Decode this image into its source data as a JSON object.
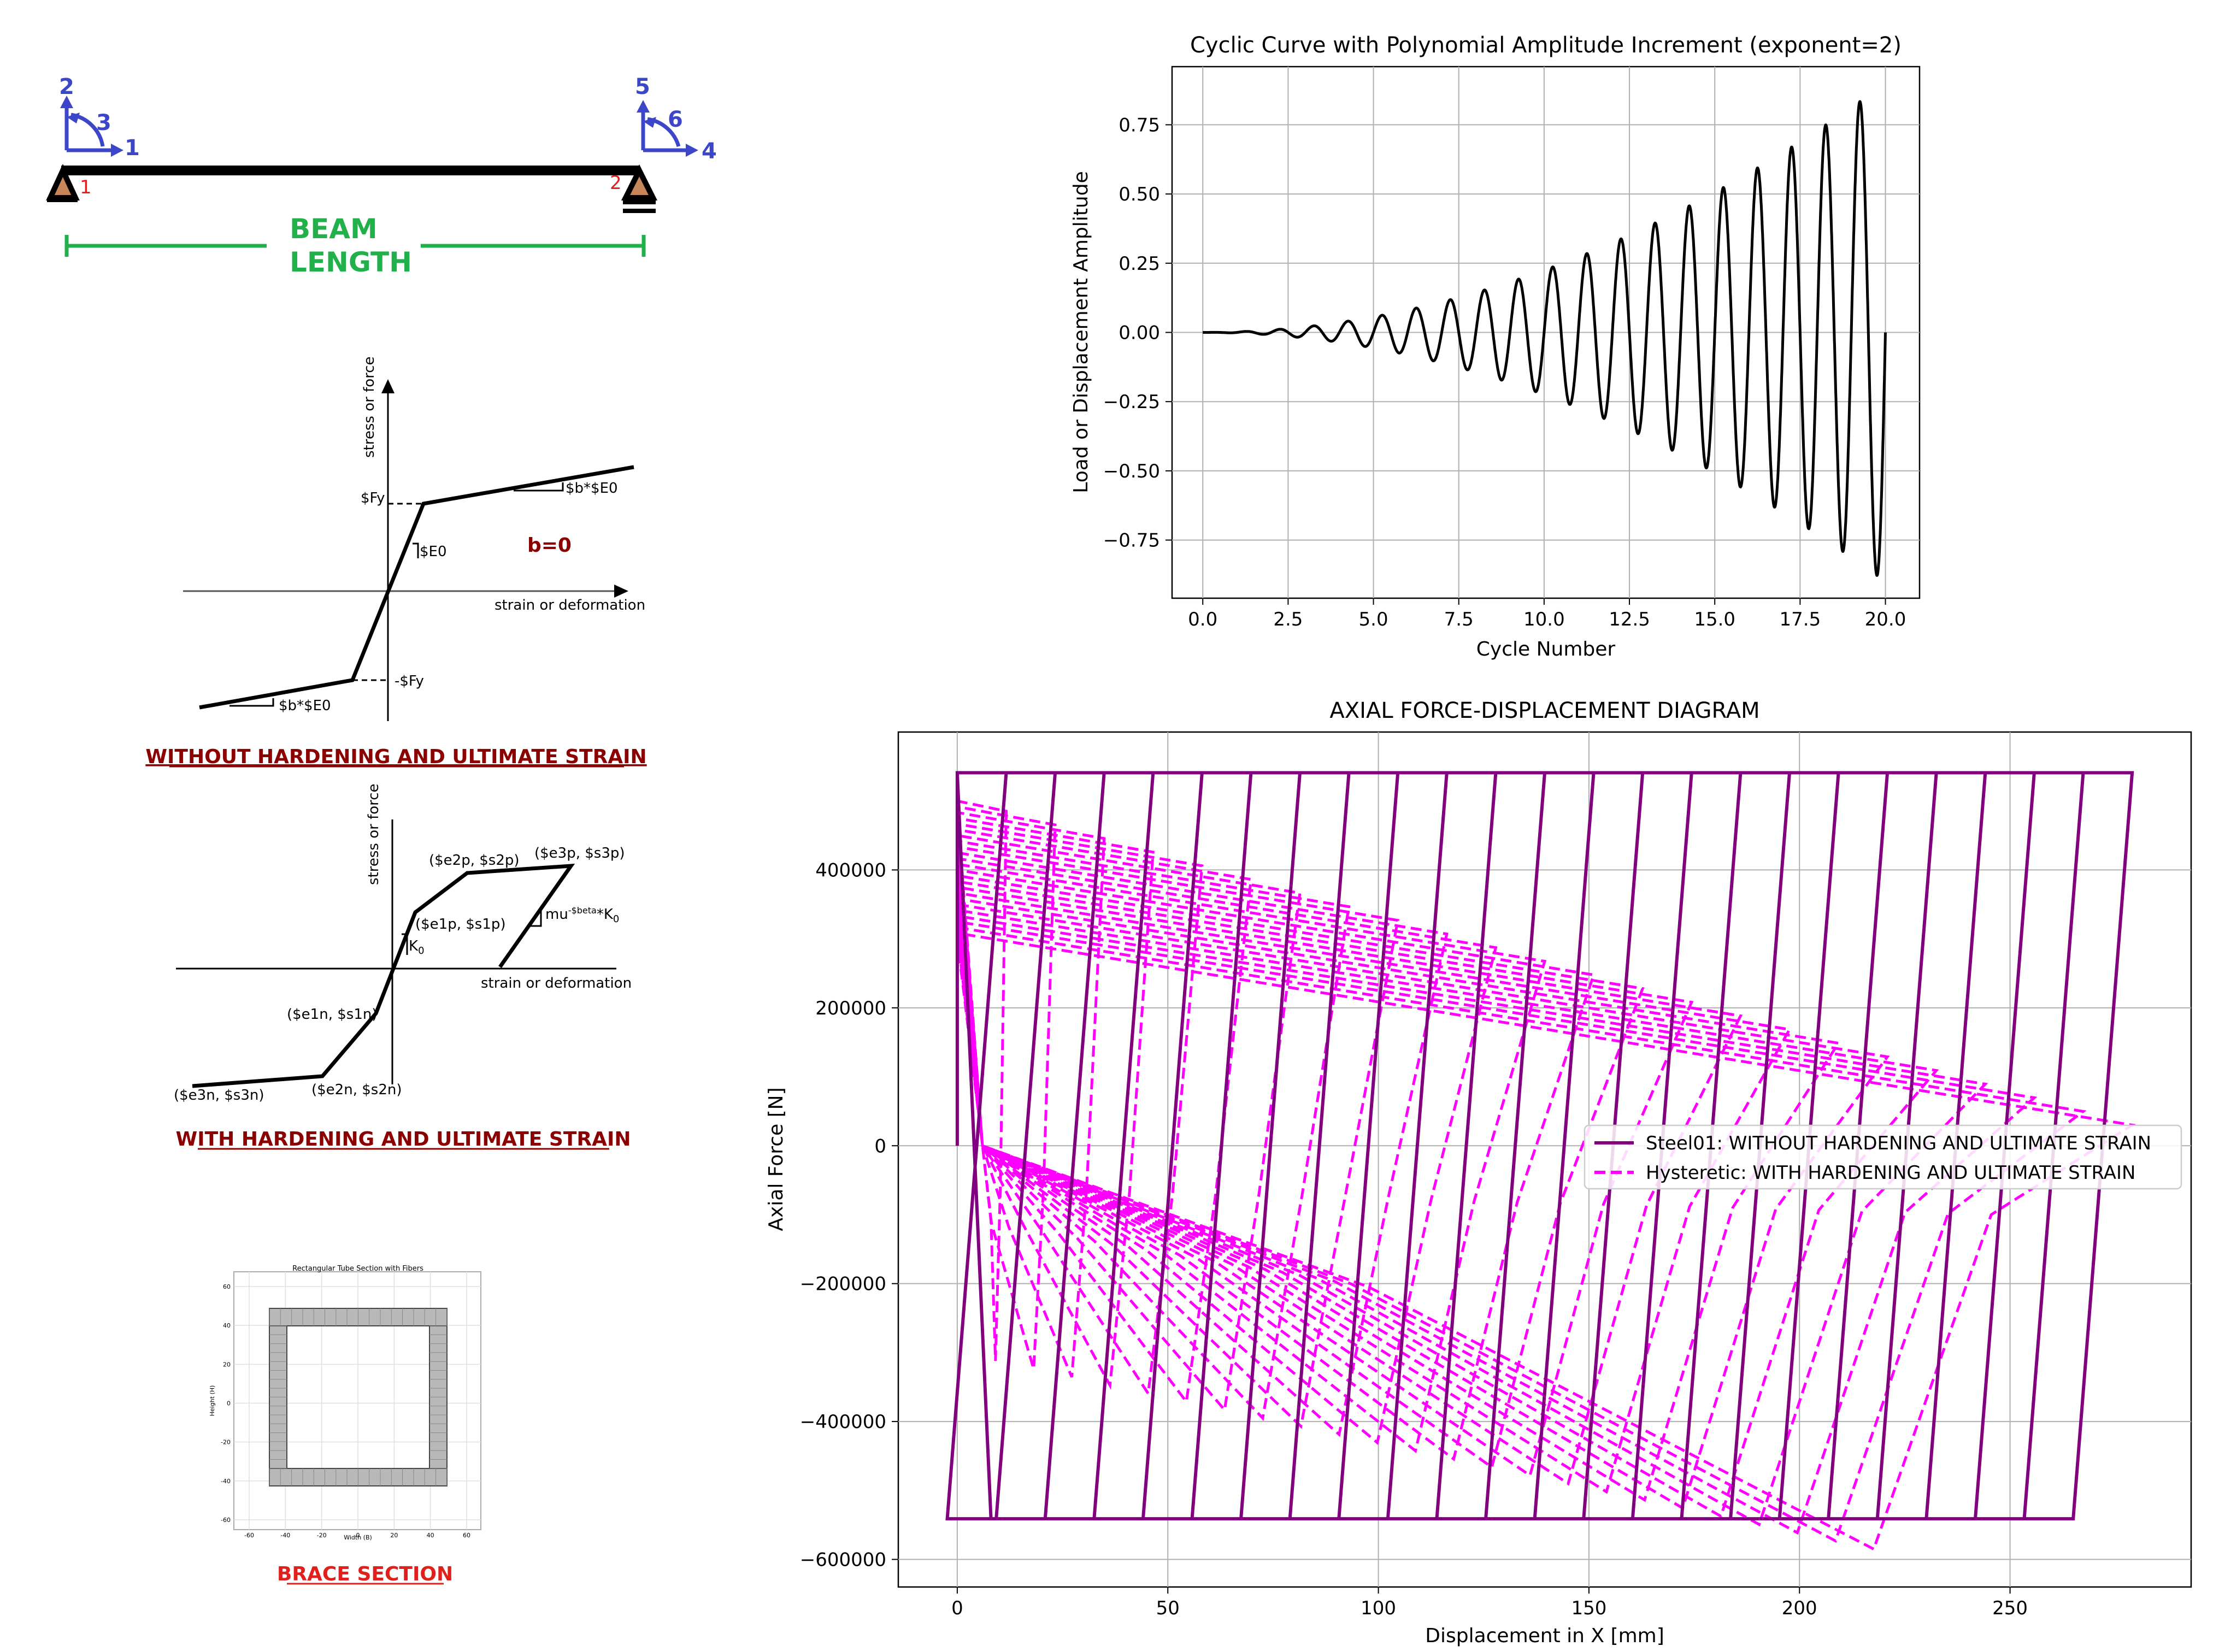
{
  "beam": {
    "dof_labels": [
      "1",
      "2",
      "3",
      "4",
      "5",
      "6"
    ],
    "node_labels": [
      "1",
      "2"
    ],
    "length_label_line1": "BEAM",
    "length_label_line2": "LENGTH"
  },
  "steel01": {
    "ylabel": "stress or force",
    "xlabel": "strain or deformation",
    "fy_pos": "$Fy",
    "fy_neg": "-$Fy",
    "e0": "$E0",
    "slope_pos": "$b*$E0",
    "slope_neg": "$b*$E0",
    "note": "b=0",
    "caption": "WITHOUT HARDENING AND ULTIMATE STRAIN"
  },
  "hysteretic": {
    "ylabel": "stress or force",
    "xlabel": "strain or deformation",
    "p1": "($e1p, $s1p)",
    "p2": "($e2p, $s2p)",
    "p3": "($e3p, $s3p)",
    "n1": "($e1n, $s1n)",
    "n2": "($e2n, $s2n)",
    "n3": "($e3n, $s3n)",
    "k0": "K",
    "k0_sub": "0",
    "mu_label": "mu",
    "mu_super": "-$beta",
    "mu_k": "*K",
    "mu_k_sub": "0",
    "caption": "WITH HARDENING AND ULTIMATE STRAIN"
  },
  "section": {
    "title": "Rectangular Tube Section with Fibers",
    "xlabel": "Width (B)",
    "ylabel": "Height (H)",
    "yticks": [
      "60",
      "40",
      "20",
      "0",
      "-20",
      "-40",
      "-60"
    ],
    "xticks": [
      "-60",
      "-40",
      "-20",
      "0",
      "20",
      "40",
      "60"
    ],
    "caption": "BRACE SECTION"
  },
  "chart_data": [
    {
      "type": "line",
      "title": "Cyclic Curve with Polynomial Amplitude Increment (exponent=2)",
      "xlabel": "Cycle Number",
      "ylabel": "Load or Displacement Amplitude",
      "xlim": [
        -0.9,
        21.0
      ],
      "ylim": [
        -0.96,
        0.96
      ],
      "xticks": [
        0.0,
        2.5,
        5.0,
        7.5,
        10.0,
        12.5,
        15.0,
        17.5,
        20.0
      ],
      "xtick_labels": [
        "0.0",
        "2.5",
        "5.0",
        "7.5",
        "10.0",
        "12.5",
        "15.0",
        "17.5",
        "20.0"
      ],
      "yticks": [
        0.75,
        0.5,
        0.25,
        0.0,
        -0.25,
        -0.5,
        -0.75
      ],
      "ytick_labels": [
        "0.75",
        "0.50",
        "0.25",
        "0.00",
        "−0.25",
        "−0.50",
        "−0.75"
      ],
      "grid": true,
      "series": [
        {
          "function": "0.9*(t/20)^2*sin(2*pi*t)",
          "x_range": [
            0,
            20
          ],
          "color": "#000000"
        }
      ]
    },
    {
      "type": "line",
      "title": "AXIAL FORCE-DISPLACEMENT DIAGRAM",
      "xlabel": "Displacement in X [mm]",
      "ylabel": "Axial Force [N]",
      "xlim": [
        -14,
        293
      ],
      "ylim": [
        -640000,
        600000
      ],
      "xticks": [
        0,
        50,
        100,
        150,
        200,
        250
      ],
      "xtick_labels": [
        "0",
        "50",
        "100",
        "150",
        "200",
        "250"
      ],
      "yticks": [
        400000,
        200000,
        0,
        -200000,
        -400000,
        -600000
      ],
      "ytick_labels": [
        "400000",
        "200000",
        "0",
        "−200000",
        "−400000",
        "−600000"
      ],
      "grid": true,
      "legend_position": "right",
      "series": [
        {
          "name": "Steel01: WITHOUT HARDENING AND ULTIMATE STRAIN",
          "color": "#800080",
          "style": "solid",
          "yield_force": 541000,
          "cycles": 24,
          "max_displacement": 279
        },
        {
          "name": "Hysteretic: WITH HARDENING AND ULTIMATE STRAIN",
          "color": "#ff00ff",
          "style": "dashed",
          "peak_force": 500000,
          "min_force": -585000,
          "cycles": 24,
          "max_displacement": 279
        }
      ]
    }
  ],
  "colors": {
    "blue": "#3b47c8",
    "green": "#22b04a",
    "darkred": "#8b0000",
    "red": "#e0201c",
    "support": "#c8875a"
  }
}
